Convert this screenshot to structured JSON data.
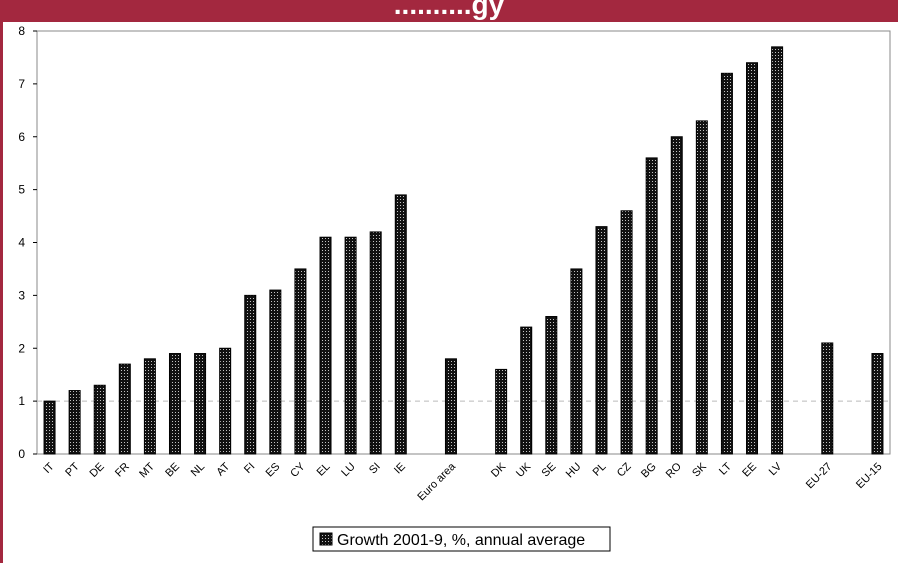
{
  "header": {
    "title": "..........gy"
  },
  "chart_data": {
    "type": "bar",
    "categories": [
      "IT",
      "PT",
      "DE",
      "FR",
      "MT",
      "BE",
      "NL",
      "AT",
      "FI",
      "ES",
      "CY",
      "EL",
      "LU",
      "SI",
      "IE",
      "",
      "Euro area",
      "",
      "DK",
      "UK",
      "SE",
      "HU",
      "PL",
      "CZ",
      "BG",
      "RO",
      "SK",
      "LT",
      "EE",
      "LV",
      "",
      "EU-27",
      "",
      "EU-15"
    ],
    "series": [
      {
        "name": "Growth 2001-9, %, annual average",
        "values": [
          1.0,
          1.2,
          1.3,
          1.7,
          1.8,
          1.9,
          1.9,
          2.0,
          3.0,
          3.1,
          3.5,
          4.1,
          4.1,
          4.2,
          4.9,
          null,
          1.8,
          null,
          1.6,
          2.4,
          2.6,
          3.5,
          4.3,
          4.6,
          5.6,
          6.0,
          6.3,
          7.2,
          7.4,
          7.7,
          null,
          2.1,
          null,
          1.9
        ]
      }
    ],
    "y_ticks": [
      "0",
      "1",
      "2",
      "3",
      "4",
      "5",
      "6",
      "7",
      "8"
    ],
    "ylim": [
      0,
      8
    ],
    "reference_line": 1,
    "grid": false,
    "legend_position": "bottom-center",
    "colors": {
      "bar": "#111111",
      "dot": "#ffffff",
      "ref_line": "#bbbbbb",
      "band": "#a3283f"
    }
  }
}
